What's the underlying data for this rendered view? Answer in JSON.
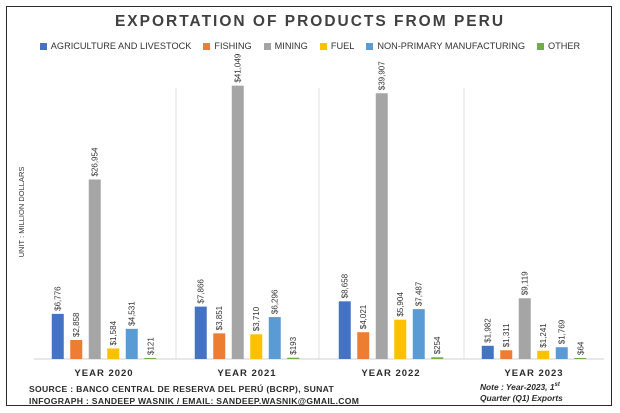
{
  "title": "EXPORTATION OF PRODUCTS FROM PERU",
  "legend": [
    {
      "label": "AGRICULTURE AND LIVESTOCK",
      "color": "#4472C4"
    },
    {
      "label": "FISHING",
      "color": "#ED7D31"
    },
    {
      "label": "MINING",
      "color": "#A5A5A5"
    },
    {
      "label": "FUEL",
      "color": "#FFC000"
    },
    {
      "label": "NON-PRIMARY MANUFACTURING",
      "color": "#5B9BD5"
    },
    {
      "label": "OTHER",
      "color": "#70AD47"
    }
  ],
  "chart_data": {
    "type": "bar",
    "title": "EXPORTATION OF PRODUCTS FROM PERU",
    "ylabel": "UNIT : MILLION DOLLARS",
    "xlabel": "",
    "ylim": [
      0,
      44000
    ],
    "grid": false,
    "legend_position": "top",
    "categories": [
      "YEAR 2020",
      "YEAR 2021",
      "YEAR 2022",
      "YEAR 2023"
    ],
    "series": [
      {
        "name": "AGRICULTURE AND LIVESTOCK",
        "values": [
          6776,
          7866,
          8658,
          1982
        ],
        "labels": [
          "$6,776",
          "$7,866",
          "$8,658",
          "$1,982"
        ]
      },
      {
        "name": "FISHING",
        "values": [
          2858,
          3851,
          4021,
          1311
        ],
        "labels": [
          "$2,858",
          "$3,851",
          "$4,021",
          "$1,311"
        ]
      },
      {
        "name": "MINING",
        "values": [
          26954,
          41049,
          39907,
          9119
        ],
        "labels": [
          "$26,954",
          "$41,049",
          "$39,907",
          "$9,119"
        ]
      },
      {
        "name": "FUEL",
        "values": [
          1584,
          3710,
          5904,
          1241
        ],
        "labels": [
          "$1,584",
          "$3,710",
          "$5,904",
          "$1,241"
        ]
      },
      {
        "name": "NON-PRIMARY MANUFACTURING",
        "values": [
          4531,
          6296,
          7487,
          1769
        ],
        "labels": [
          "$4,531",
          "$6,296",
          "$7,487",
          "$1,769"
        ]
      },
      {
        "name": "OTHER",
        "values": [
          121,
          193,
          254,
          64
        ],
        "labels": [
          "$121",
          "$193",
          "$254",
          "$64"
        ]
      }
    ]
  },
  "footer": {
    "source": "SOURCE : BANCO CENTRAL DE RESERVA DEL PERÚ (BCRP), SUNAT",
    "infograph": "INFOGRAPH : SANDEEP WASNIK / EMAIL: SANDEEP.WASNIK@GMAIL.COM"
  },
  "note": {
    "line1": "Note : Year-2023, 1",
    "line1_sup": "st",
    "line2": "Quarter (Q1) Exports"
  }
}
